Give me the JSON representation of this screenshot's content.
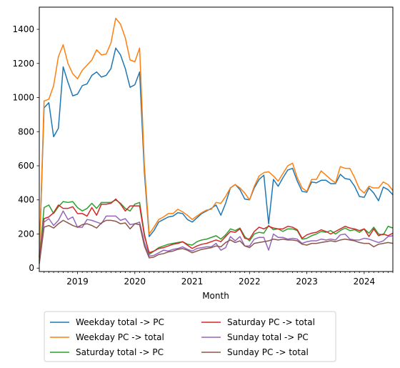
{
  "chart_data": {
    "type": "line",
    "title": "",
    "xlabel": "Month",
    "ylabel": "",
    "xlim": [
      "2018-05",
      "2024-07"
    ],
    "ylim": [
      -20,
      1530
    ],
    "grid": false,
    "legend_position": "bottom-center",
    "x_ticks": [
      {
        "date": "2019-01",
        "label": "2019"
      },
      {
        "date": "2020-01",
        "label": "2020"
      },
      {
        "date": "2021-01",
        "label": "2021"
      },
      {
        "date": "2022-01",
        "label": "2022"
      },
      {
        "date": "2023-01",
        "label": "2023"
      },
      {
        "date": "2024-01",
        "label": "2024"
      }
    ],
    "y_ticks": [
      0,
      200,
      400,
      600,
      800,
      1000,
      1200,
      1400
    ],
    "x": [
      "2018-05",
      "2018-06",
      "2018-07",
      "2018-08",
      "2018-09",
      "2018-10",
      "2018-11",
      "2018-12",
      "2019-01",
      "2019-02",
      "2019-03",
      "2019-04",
      "2019-05",
      "2019-06",
      "2019-07",
      "2019-08",
      "2019-09",
      "2019-10",
      "2019-11",
      "2019-12",
      "2020-01",
      "2020-02",
      "2020-03",
      "2020-04",
      "2020-05",
      "2020-06",
      "2020-07",
      "2020-08",
      "2020-09",
      "2020-10",
      "2020-11",
      "2020-12",
      "2021-01",
      "2021-02",
      "2021-03",
      "2021-04",
      "2021-05",
      "2021-06",
      "2021-07",
      "2021-08",
      "2021-09",
      "2021-10",
      "2021-11",
      "2021-12",
      "2022-01",
      "2022-02",
      "2022-03",
      "2022-04",
      "2022-05",
      "2022-06",
      "2022-07",
      "2022-08",
      "2022-09",
      "2022-10",
      "2022-11",
      "2022-12",
      "2023-01",
      "2023-02",
      "2023-03",
      "2023-04",
      "2023-05",
      "2023-06",
      "2023-07",
      "2023-08",
      "2023-09",
      "2023-10",
      "2023-11",
      "2023-12",
      "2024-01",
      "2024-02",
      "2024-03",
      "2024-04",
      "2024-05",
      "2024-06",
      "2024-07"
    ],
    "series": [
      {
        "name": "Weekday total -> PC",
        "color": "#1f77b4",
        "values": [
          60,
          940,
          970,
          770,
          820,
          1180,
          1090,
          1010,
          1020,
          1070,
          1080,
          1130,
          1150,
          1120,
          1130,
          1170,
          1290,
          1250,
          1170,
          1060,
          1075,
          1150,
          560,
          185,
          220,
          270,
          285,
          300,
          305,
          325,
          320,
          285,
          270,
          295,
          320,
          335,
          350,
          370,
          310,
          380,
          470,
          490,
          460,
          405,
          400,
          470,
          520,
          545,
          260,
          520,
          480,
          530,
          575,
          585,
          510,
          450,
          445,
          505,
          500,
          515,
          515,
          495,
          495,
          550,
          525,
          520,
          480,
          420,
          415,
          470,
          440,
          395,
          475,
          460,
          430
        ]
      },
      {
        "name": "Weekday PC -> total",
        "color": "#ff7f0e",
        "values": [
          65,
          980,
          990,
          1070,
          1240,
          1310,
          1200,
          1140,
          1110,
          1160,
          1190,
          1220,
          1280,
          1250,
          1255,
          1320,
          1465,
          1430,
          1350,
          1220,
          1210,
          1290,
          600,
          200,
          240,
          285,
          300,
          320,
          320,
          345,
          330,
          310,
          285,
          305,
          325,
          340,
          345,
          385,
          380,
          420,
          470,
          490,
          470,
          440,
          400,
          480,
          540,
          560,
          565,
          540,
          510,
          555,
          600,
          615,
          530,
          470,
          450,
          520,
          520,
          570,
          545,
          520,
          500,
          595,
          585,
          585,
          530,
          465,
          440,
          480,
          470,
          470,
          505,
          490,
          455
        ]
      },
      {
        "name": "Saturday total -> PC",
        "color": "#2ca02c",
        "values": [
          40,
          355,
          370,
          320,
          360,
          390,
          385,
          390,
          355,
          335,
          350,
          380,
          350,
          385,
          385,
          385,
          400,
          380,
          350,
          335,
          375,
          385,
          200,
          80,
          100,
          120,
          130,
          140,
          145,
          150,
          155,
          140,
          135,
          155,
          165,
          170,
          180,
          190,
          170,
          195,
          230,
          220,
          235,
          185,
          160,
          200,
          210,
          205,
          250,
          225,
          230,
          215,
          230,
          230,
          220,
          170,
          175,
          190,
          200,
          215,
          210,
          220,
          200,
          220,
          235,
          220,
          225,
          210,
          230,
          205,
          240,
          200,
          195,
          245,
          235
        ]
      },
      {
        "name": "Saturday PC -> total",
        "color": "#d62728",
        "values": [
          50,
          290,
          300,
          325,
          370,
          350,
          350,
          360,
          320,
          320,
          305,
          355,
          310,
          375,
          375,
          380,
          405,
          375,
          335,
          365,
          365,
          365,
          190,
          90,
          100,
          115,
          120,
          130,
          140,
          145,
          155,
          135,
          115,
          130,
          140,
          145,
          155,
          165,
          155,
          185,
          215,
          210,
          230,
          175,
          170,
          215,
          240,
          230,
          245,
          235,
          230,
          230,
          245,
          240,
          225,
          175,
          195,
          205,
          210,
          225,
          215,
          200,
          215,
          230,
          245,
          235,
          230,
          220,
          230,
          185,
          230,
          190,
          200,
          190,
          205
        ]
      },
      {
        "name": "Sunday total -> PC",
        "color": "#9467bd",
        "values": [
          30,
          270,
          290,
          250,
          280,
          335,
          285,
          300,
          240,
          240,
          285,
          280,
          270,
          260,
          305,
          305,
          305,
          280,
          290,
          255,
          260,
          270,
          150,
          70,
          75,
          90,
          105,
          100,
          110,
          115,
          125,
          110,
          100,
          115,
          120,
          125,
          125,
          145,
          105,
          120,
          185,
          160,
          185,
          130,
          130,
          170,
          180,
          180,
          105,
          200,
          180,
          180,
          170,
          175,
          170,
          145,
          155,
          160,
          160,
          170,
          165,
          170,
          165,
          195,
          200,
          170,
          165,
          165,
          175,
          170,
          160,
          150,
          160,
          185,
          190
        ]
      },
      {
        "name": "Sunday PC -> total",
        "color": "#8c564b",
        "values": [
          25,
          240,
          250,
          235,
          260,
          280,
          265,
          250,
          240,
          255,
          260,
          250,
          235,
          265,
          280,
          280,
          275,
          260,
          265,
          230,
          260,
          255,
          130,
          60,
          65,
          80,
          85,
          95,
          100,
          110,
          115,
          105,
          90,
          100,
          110,
          115,
          120,
          130,
          125,
          150,
          165,
          150,
          160,
          130,
          120,
          145,
          150,
          155,
          160,
          170,
          165,
          170,
          165,
          165,
          160,
          140,
          135,
          145,
          145,
          150,
          155,
          160,
          155,
          165,
          170,
          165,
          160,
          150,
          145,
          145,
          125,
          140,
          145,
          150,
          145
        ]
      }
    ]
  }
}
